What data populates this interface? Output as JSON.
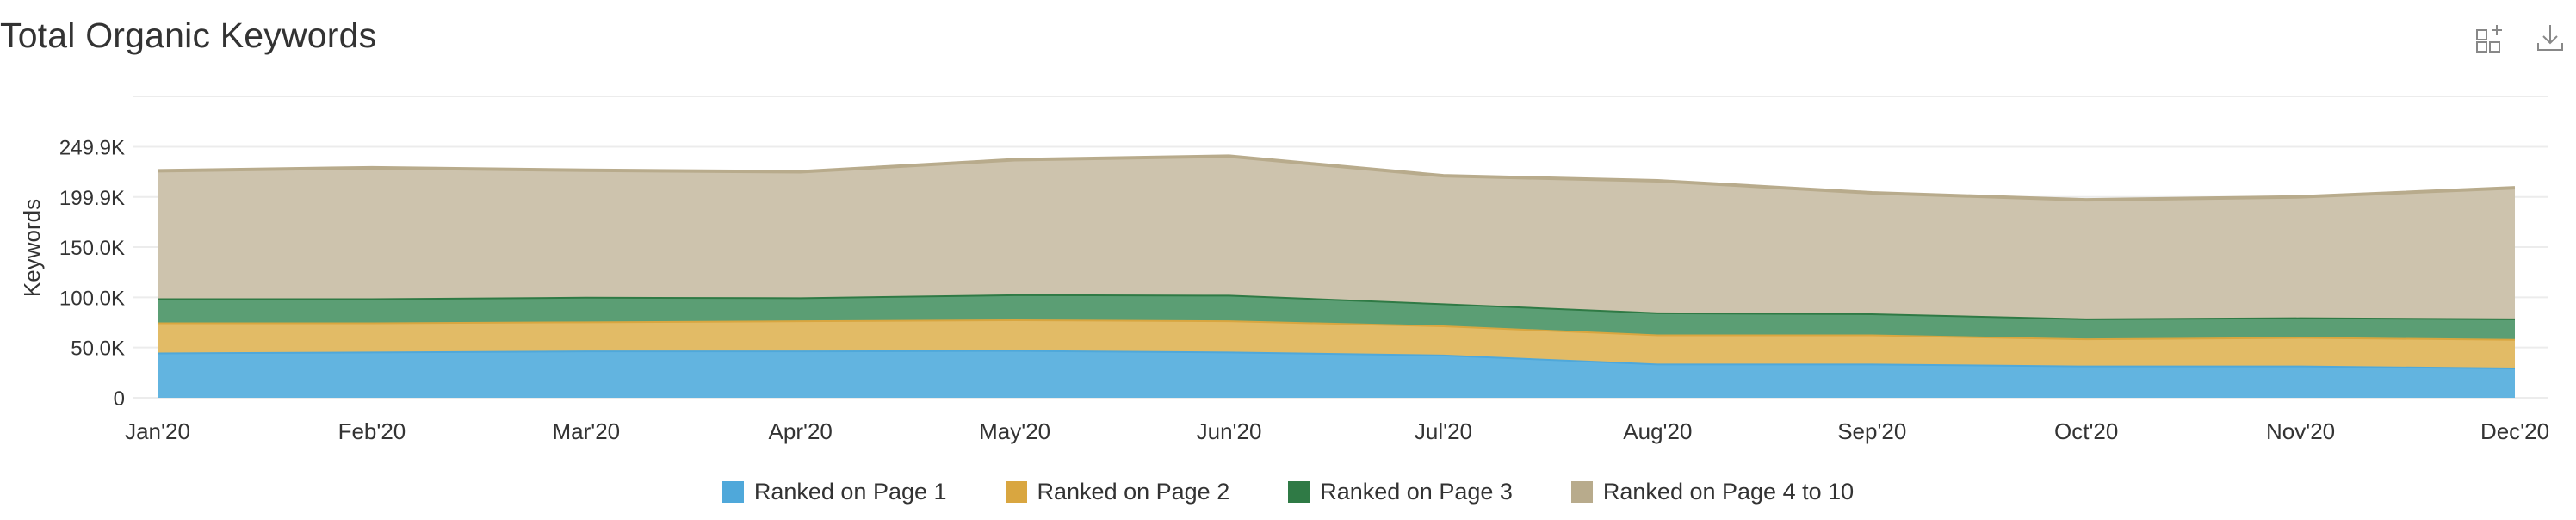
{
  "header": {
    "title": "Total Organic Keywords",
    "grid_icon": "add-widget-icon",
    "download_icon": "download-icon"
  },
  "chart_data": {
    "type": "area",
    "stacked": true,
    "title": "Total Organic Keywords",
    "xlabel": "",
    "ylabel": "Keywords",
    "categories": [
      "Jan'20",
      "Feb'20",
      "Mar'20",
      "Apr'20",
      "May'20",
      "Jun'20",
      "Jul'20",
      "Aug'20",
      "Sep'20",
      "Oct'20",
      "Nov'20",
      "Dec'20"
    ],
    "y_ticks": [
      {
        "value": 0,
        "label": "0"
      },
      {
        "value": 50000,
        "label": "50.0K"
      },
      {
        "value": 100000,
        "label": "100.0K"
      },
      {
        "value": 150000,
        "label": "150.0K"
      },
      {
        "value": 199900,
        "label": "199.9K"
      },
      {
        "value": 249900,
        "label": "249.9K"
      }
    ],
    "ylim": [
      0,
      300000
    ],
    "grid": true,
    "legend_position": "bottom",
    "series": [
      {
        "name": "Ranked on Page 1",
        "color": "#4fa8da",
        "fill": "#62b4e0",
        "values": [
          45000,
          46000,
          47000,
          47000,
          47500,
          46000,
          43000,
          34000,
          34000,
          32000,
          32000,
          30000
        ]
      },
      {
        "name": "Ranked on Page 2",
        "color": "#d9a640",
        "fill": "#e2bb66",
        "values": [
          30000,
          29000,
          29000,
          30000,
          30500,
          31000,
          29000,
          29000,
          29000,
          27000,
          28500,
          28500
        ]
      },
      {
        "name": "Ranked on Page 3",
        "color": "#2f7a45",
        "fill": "#5b9e74",
        "values": [
          24000,
          24000,
          24500,
          23000,
          25000,
          25500,
          22000,
          22000,
          21000,
          20000,
          19500,
          20500
        ]
      },
      {
        "name": "Ranked on Page 4 to 10",
        "color": "#b8ab8c",
        "fill": "#cdc3ad",
        "values": [
          127000,
          130000,
          126000,
          125000,
          134000,
          138000,
          127000,
          131000,
          120000,
          118000,
          120000,
          130000
        ]
      }
    ]
  }
}
